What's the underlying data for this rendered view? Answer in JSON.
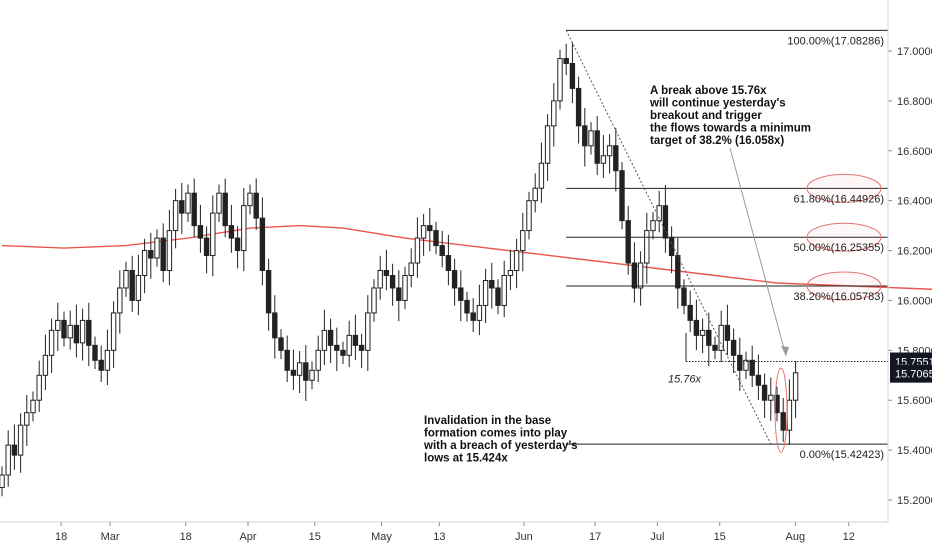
{
  "chart_data": {
    "type": "candlestick",
    "title": "",
    "xlabel": "",
    "ylabel": "",
    "ylim": [
      15.1,
      17.18
    ],
    "grid": false,
    "price_ticks": [
      "17.00000",
      "16.80000",
      "16.60000",
      "16.40000",
      "16.20000",
      "16.00000",
      "15.80000",
      "15.60000",
      "15.40000",
      "15.20000"
    ],
    "price_tick_values": [
      17.0,
      16.8,
      16.6,
      16.4,
      16.2,
      16.0,
      15.8,
      15.6,
      15.4,
      15.2
    ],
    "date_ticks": [
      {
        "label": "18",
        "day": 18
      },
      {
        "label": "Mar",
        "day": 29
      },
      {
        "label": "18",
        "day": 46
      },
      {
        "label": "Apr",
        "day": 60
      },
      {
        "label": "15",
        "day": 75
      },
      {
        "label": "May",
        "day": 90
      },
      {
        "label": "13",
        "day": 103
      },
      {
        "label": "Jun",
        "day": 122
      },
      {
        "label": "17",
        "day": 138
      },
      {
        "label": "Jul",
        "day": 152
      },
      {
        "label": "15",
        "day": 166
      },
      {
        "label": "Aug",
        "day": 183
      },
      {
        "label": "12",
        "day": 195
      }
    ],
    "closes": [
      15.3,
      15.42,
      15.38,
      15.5,
      15.55,
      15.6,
      15.7,
      15.78,
      15.88,
      15.92,
      15.85,
      15.9,
      15.83,
      15.92,
      15.82,
      15.76,
      15.72,
      15.8,
      15.95,
      16.05,
      16.12,
      16.0,
      16.1,
      16.2,
      16.17,
      16.25,
      16.12,
      16.28,
      16.4,
      16.35,
      16.43,
      16.3,
      16.25,
      16.18,
      16.35,
      16.43,
      16.3,
      16.25,
      16.2,
      16.38,
      16.43,
      16.33,
      16.12,
      15.95,
      15.85,
      15.8,
      15.72,
      15.7,
      15.75,
      15.68,
      15.72,
      15.8,
      15.88,
      15.82,
      15.8,
      15.78,
      15.86,
      15.82,
      15.8,
      15.95,
      16.05,
      16.12,
      16.1,
      16.05,
      16.0,
      16.1,
      16.15,
      16.25,
      16.3,
      16.28,
      16.22,
      16.18,
      16.12,
      16.05,
      16.0,
      15.95,
      15.92,
      15.98,
      16.08,
      16.05,
      15.98,
      16.1,
      16.12,
      16.2,
      16.28,
      16.4,
      16.45,
      16.55,
      16.7,
      16.8,
      16.97,
      16.95,
      16.85,
      16.7,
      16.62,
      16.68,
      16.55,
      16.58,
      16.62,
      16.52,
      16.32,
      16.15,
      16.05,
      16.15,
      16.28,
      16.32,
      16.38,
      16.25,
      16.18,
      16.05,
      15.98,
      15.92,
      15.86,
      15.88,
      15.82,
      15.8,
      15.9,
      15.84,
      15.78,
      15.72,
      15.76,
      15.7,
      15.66,
      15.6,
      15.62,
      15.55,
      15.48,
      15.6,
      15.71
    ],
    "last_close": 15.70651,
    "current_price_label": "15.70651",
    "breakout_level_label": "15.75518",
    "breakout_level": 15.75518,
    "ma_points": [
      [
        0,
        16.22
      ],
      [
        10,
        16.21
      ],
      [
        20,
        16.22
      ],
      [
        30,
        16.25
      ],
      [
        40,
        16.29
      ],
      [
        48,
        16.3
      ],
      [
        55,
        16.29
      ],
      [
        65,
        16.25
      ],
      [
        75,
        16.22
      ],
      [
        85,
        16.19
      ],
      [
        95,
        16.16
      ],
      [
        105,
        16.13
      ],
      [
        115,
        16.1
      ],
      [
        125,
        16.07
      ],
      [
        135,
        16.06
      ],
      [
        145,
        16.05
      ],
      [
        155,
        16.04
      ],
      [
        165,
        16.04
      ],
      [
        180,
        16.04
      ]
    ],
    "fib_levels": [
      {
        "label": "100.00%(17.08286)",
        "price": 17.08286,
        "circled": false
      },
      {
        "label": "61.80%(16.44926)",
        "price": 16.44926,
        "circled": true
      },
      {
        "label": "50.00%(16.25355)",
        "price": 16.25355,
        "circled": true
      },
      {
        "label": "38.20%(16.05783)",
        "price": 16.05783,
        "circled": true
      },
      {
        "label": "0.00%(15.42423)",
        "price": 15.42423,
        "circled": false
      }
    ],
    "breakout_marker_label": "15.76x",
    "annotations": [
      {
        "id": "upper",
        "lines": [
          "A break above 15.76x",
          "will continue yesterday's",
          "breakout and trigger",
          "the flows towards a minimum",
          "target of 38.2% (16.058x)"
        ]
      },
      {
        "id": "lower",
        "lines": [
          "Invalidation in the base",
          "formation comes into play",
          "with a breach of yesterday's",
          "lows at 15.424x"
        ]
      }
    ],
    "colors": {
      "candle": "#222222",
      "ma": "#e8584f",
      "fib_circle": "#e57373",
      "marker_text": "#e8584f",
      "price_tag": "#131722"
    }
  }
}
